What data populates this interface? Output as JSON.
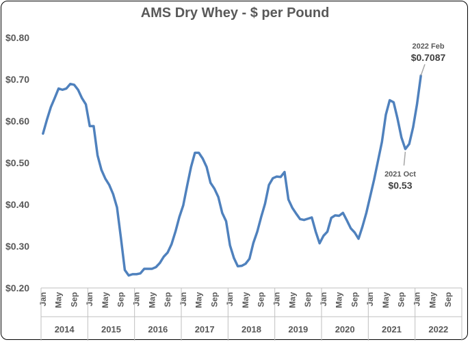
{
  "chart_data": {
    "type": "line",
    "title": "AMS Dry Whey - $ per Pound",
    "xlabel": "",
    "ylabel": "",
    "ylim": [
      0.2,
      0.8
    ],
    "y_ticks": [
      "$0.20",
      "$0.30",
      "$0.40",
      "$0.50",
      "$0.60",
      "$0.70",
      "$0.80"
    ],
    "y_tick_values": [
      0.2,
      0.3,
      0.4,
      0.5,
      0.6,
      0.7,
      0.8
    ],
    "month_tick_labels": [
      "Jan",
      "May",
      "Sep"
    ],
    "years": [
      "2014",
      "2015",
      "2016",
      "2017",
      "2018",
      "2019",
      "2020",
      "2021",
      "2022"
    ],
    "grid": false,
    "legend": "none",
    "line_color": "#4f81bd",
    "series": [
      {
        "values": [
          0.57,
          0.603,
          0.633,
          0.655,
          0.678,
          0.675,
          0.678,
          0.689,
          0.687,
          0.675,
          0.655,
          0.64,
          0.588,
          0.588,
          0.518,
          0.483,
          0.462,
          0.447,
          0.425,
          0.393,
          0.32,
          0.243,
          0.23,
          0.233,
          0.233,
          0.235,
          0.246,
          0.246,
          0.246,
          0.25,
          0.26,
          0.275,
          0.285,
          0.305,
          0.335,
          0.37,
          0.398,
          0.445,
          0.49,
          0.524,
          0.524,
          0.51,
          0.49,
          0.452,
          0.438,
          0.418,
          0.38,
          0.36,
          0.302,
          0.272,
          0.252,
          0.253,
          0.258,
          0.27,
          0.308,
          0.335,
          0.37,
          0.402,
          0.447,
          0.463,
          0.467,
          0.466,
          0.478,
          0.412,
          0.392,
          0.378,
          0.365,
          0.363,
          0.366,
          0.369,
          0.335,
          0.307,
          0.325,
          0.335,
          0.368,
          0.374,
          0.373,
          0.38,
          0.362,
          0.343,
          0.333,
          0.318,
          0.347,
          0.38,
          0.42,
          0.46,
          0.505,
          0.55,
          0.615,
          0.65,
          0.645,
          0.606,
          0.561,
          0.533,
          0.545,
          0.585,
          0.64,
          0.709
        ]
      }
    ],
    "annotations": [
      {
        "date_label": "2022 Feb",
        "value_label": "$0.7087",
        "month_index": 97
      },
      {
        "date_label": "2021 Oct",
        "value_label": "$0.53",
        "month_index": 93
      }
    ]
  }
}
